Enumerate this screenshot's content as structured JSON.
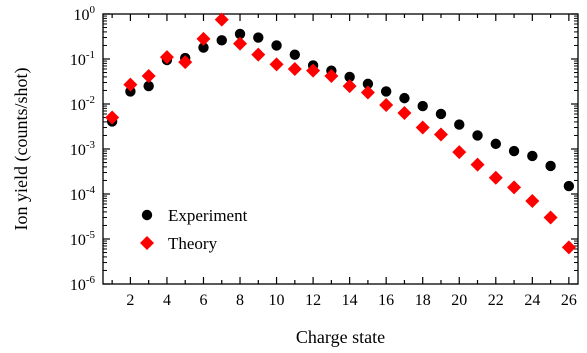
{
  "chart_data": {
    "type": "scatter",
    "title": "",
    "xlabel": "Charge state",
    "ylabel": "Ion yield (counts/shot)",
    "xlim": [
      0.5,
      26.5
    ],
    "ylim_log10": [
      -6,
      0
    ],
    "yscale": "log",
    "x_ticks_major": [
      2,
      4,
      6,
      8,
      10,
      12,
      14,
      16,
      18,
      20,
      22,
      24,
      26
    ],
    "x_tick_labels": [
      "2",
      "4",
      "6",
      "8",
      "10",
      "12",
      "14",
      "16",
      "18",
      "20",
      "22",
      "24",
      "26"
    ],
    "y_ticks": [
      {
        "base": "10",
        "exp": "0"
      },
      {
        "base": "10",
        "exp": "-1"
      },
      {
        "base": "10",
        "exp": "-2"
      },
      {
        "base": "10",
        "exp": "-3"
      },
      {
        "base": "10",
        "exp": "-4"
      },
      {
        "base": "10",
        "exp": "-5"
      },
      {
        "base": "10",
        "exp": "-6"
      }
    ],
    "legend_position": "lower-left",
    "series": [
      {
        "name": "Experiment",
        "marker": "circle",
        "color": "#000000",
        "x": [
          1,
          2,
          3,
          4,
          5,
          6,
          7,
          8,
          9,
          10,
          11,
          12,
          13,
          14,
          15,
          16,
          17,
          18,
          19,
          20,
          21,
          22,
          23,
          24,
          25,
          26
        ],
        "y": [
          0.0041,
          0.019,
          0.025,
          0.095,
          0.105,
          0.18,
          0.26,
          0.36,
          0.3,
          0.2,
          0.125,
          0.072,
          0.055,
          0.04,
          0.028,
          0.019,
          0.0135,
          0.009,
          0.006,
          0.0035,
          0.002,
          0.0013,
          0.0009,
          0.0007,
          0.00042,
          0.00015
        ]
      },
      {
        "name": "Theory",
        "marker": "diamond",
        "color": "#ff0000",
        "x": [
          1,
          2,
          3,
          4,
          5,
          6,
          7,
          8,
          9,
          10,
          11,
          12,
          13,
          14,
          15,
          16,
          17,
          18,
          19,
          20,
          21,
          22,
          23,
          24,
          25,
          26
        ],
        "y": [
          0.005,
          0.027,
          0.042,
          0.11,
          0.085,
          0.28,
          0.75,
          0.22,
          0.125,
          0.076,
          0.06,
          0.055,
          0.042,
          0.025,
          0.018,
          0.0095,
          0.0063,
          0.003,
          0.0021,
          0.00085,
          0.00045,
          0.00023,
          0.00014,
          7e-05,
          3e-05,
          6.5e-06
        ]
      }
    ]
  }
}
